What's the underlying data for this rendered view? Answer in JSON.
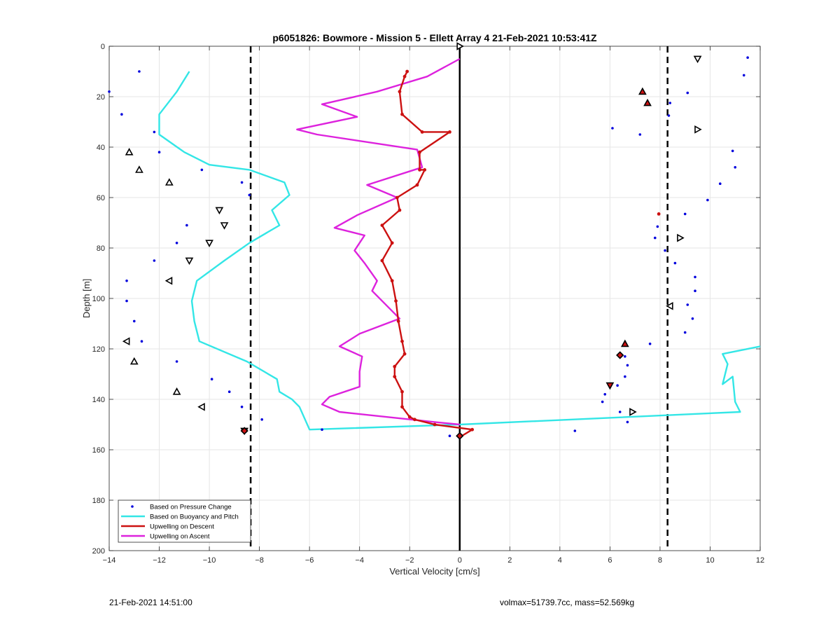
{
  "footer": {
    "left": "21-Feb-2021 14:51:00",
    "right": "volmax=51739.7cc, mass=52.569kg"
  },
  "colors": {
    "pressure": "#0000dd",
    "buoyancy": "#33e6e6",
    "descent": "#cc1111",
    "ascent": "#dd22dd"
  },
  "chart_data": {
    "type": "line",
    "title": "p6051826: Bowmore - Mission 5 - Ellett Array 4 21-Feb-2021 10:53:41Z",
    "xlabel": "Vertical Velocity [cm/s]",
    "ylabel": "Depth [m]",
    "xlim": [
      -14,
      12
    ],
    "ylim": [
      0,
      200
    ],
    "y_reversed": true,
    "grid": true,
    "xticks": [
      -14,
      -12,
      -10,
      -8,
      -6,
      -4,
      -2,
      0,
      2,
      4,
      6,
      8,
      10,
      12
    ],
    "yticks": [
      0,
      20,
      40,
      60,
      80,
      100,
      120,
      140,
      160,
      180,
      200
    ],
    "legend_position": "bottom-left",
    "vertical_lines": [
      {
        "x": -8.35,
        "style": "dashed"
      },
      {
        "x": 0,
        "style": "solid"
      },
      {
        "x": 8.3,
        "style": "dashed"
      }
    ],
    "series": [
      {
        "name": "Based on Pressure Change",
        "kind": "points",
        "x": [
          -12.8,
          -14.0,
          -13.5,
          -12.2,
          -12.0,
          -10.3,
          -8.7,
          -8.4,
          -9.6,
          -10.9,
          -11.3,
          -12.2,
          -13.3,
          -13.3,
          -13.0,
          -12.7,
          -11.3,
          -9.9,
          -9.2,
          -8.7,
          -7.9,
          -5.5,
          -0.4,
          11.5,
          11.35,
          9.1,
          8.4,
          8.35,
          6.1,
          7.2,
          10.9,
          11.0,
          10.4,
          9.9,
          9.0,
          7.9,
          7.8,
          8.2,
          8.6,
          9.4,
          9.4,
          9.1,
          9.3,
          9.0,
          7.6,
          6.6,
          6.7,
          6.6,
          6.3,
          5.8,
          5.7,
          6.4,
          6.7,
          4.6
        ],
        "y": [
          10,
          18,
          27,
          34,
          42,
          49,
          54,
          59,
          65,
          71,
          78,
          85,
          93,
          101,
          109,
          117,
          125,
          132,
          137,
          143,
          148,
          152,
          154.5,
          4.5,
          11.5,
          18.5,
          22.5,
          27.5,
          32.5,
          35,
          41.5,
          48,
          54.5,
          61,
          66.5,
          71.5,
          76,
          81,
          86,
          91.5,
          97,
          102.5,
          108,
          113.5,
          118,
          123,
          126.5,
          131,
          134.5,
          138,
          141,
          145,
          149,
          152.5
        ]
      },
      {
        "name": "Based on Buoyancy and Pitch",
        "kind": "line",
        "x": [
          -10.8,
          -11.3,
          -12.0,
          -12.0,
          -12.0,
          -11.0,
          -10.0,
          -8.4,
          -7.0,
          -6.8,
          -7.5,
          -7.2,
          -8.4,
          -9.4,
          -10.5,
          -10.7,
          -10.6,
          -10.4,
          -8.5,
          -7.3,
          -7.2,
          -6.7,
          -6.4,
          -6.0,
          0.0,
          11.2,
          11.0,
          10.9,
          10.5,
          10.7,
          10.5,
          10.5,
          12.0
        ],
        "y": [
          10,
          18,
          27,
          34,
          35,
          42,
          47,
          49,
          54,
          59,
          65,
          71,
          78,
          85,
          93,
          101,
          109,
          117,
          125,
          132,
          137,
          140,
          143,
          152,
          150,
          145,
          141,
          131,
          134,
          126,
          122,
          122,
          119
        ]
      },
      {
        "name": "Upwelling on Descent",
        "kind": "line",
        "x": [
          -2.1,
          -2.2,
          -2.4,
          -2.3,
          -1.5,
          -0.4,
          -1.6,
          -1.6,
          -1.4,
          -1.7,
          -2.5,
          -2.4,
          -3.1,
          -2.7,
          -3.1,
          -2.7,
          -2.55,
          -2.45,
          -2.3,
          -2.2,
          -2.6,
          -2.6,
          -2.3,
          -2.3,
          -2.0,
          -1.8,
          -1.0,
          0.5,
          0.0,
          0.0
        ],
        "y": [
          10,
          12,
          18,
          27,
          34,
          34,
          42,
          49,
          49,
          55,
          60,
          65,
          71,
          78,
          85,
          93,
          101,
          109,
          117,
          122,
          127,
          131,
          137,
          143,
          147,
          148,
          150,
          152,
          155,
          155
        ]
      },
      {
        "name": "Upwelling on Ascent",
        "kind": "line",
        "x": [
          0.0,
          -1.3,
          -3.3,
          -5.5,
          -4.1,
          -6.5,
          -5.7,
          -1.7,
          -1.5,
          -3.7,
          -2.5,
          -4.1,
          -5.0,
          -3.8,
          -4.2,
          -3.8,
          -3.3,
          -3.5,
          -2.4,
          -4.0,
          -4.8,
          -3.9,
          -4.0,
          -4.0,
          -5.2,
          -5.5,
          -4.8,
          -1.0,
          0.0
        ],
        "y": [
          5,
          12,
          18,
          23,
          28,
          33,
          35,
          41,
          48,
          55,
          60,
          67,
          72,
          75,
          81,
          86,
          93,
          97,
          108,
          114,
          119,
          123,
          129,
          135,
          139,
          142,
          145,
          149,
          150
        ]
      },
      {
        "kind": "points-filled",
        "x": [
          -2.1,
          -2.2,
          -2.4,
          -2.3,
          -1.5,
          -0.4,
          -1.6,
          -1.6,
          -1.4,
          -1.7,
          -2.5,
          -2.4,
          -3.1,
          -2.7,
          -3.1,
          -2.7,
          -2.55,
          -2.45,
          -2.3,
          -2.2,
          -2.6,
          -2.6,
          -2.3,
          -2.3,
          -2.0,
          -1.8,
          -1.0,
          0.5,
          7.95
        ],
        "y": [
          10,
          12,
          18,
          27,
          34,
          34,
          42,
          49,
          49,
          55,
          60,
          65,
          71,
          78,
          85,
          93,
          101,
          109,
          117,
          122,
          127,
          131,
          137,
          143,
          147,
          148,
          150,
          152,
          66.5
        ]
      },
      {
        "kind": "markers-up",
        "x": [
          -13.2,
          -12.8,
          -11.6,
          -13.0,
          -11.3,
          7.3,
          7.5,
          6.6
        ],
        "y": [
          42,
          49,
          54,
          125,
          137,
          18,
          22.5,
          118
        ]
      },
      {
        "kind": "markers-down",
        "x": [
          9.5,
          -9.6,
          -9.4,
          -10.0,
          -10.8,
          6.0,
          -8.6
        ],
        "y": [
          5,
          65,
          71,
          78,
          85,
          134.5,
          152.5
        ]
      },
      {
        "kind": "markers-left",
        "x": [
          -11.6,
          -13.3,
          8.4,
          -10.3
        ],
        "y": [
          93,
          117,
          103,
          143
        ]
      },
      {
        "kind": "markers-right",
        "x": [
          0.0,
          9.5,
          8.8,
          6.9
        ],
        "y": [
          0,
          33,
          76,
          145
        ]
      },
      {
        "kind": "markers-filled",
        "x": [
          -8.6,
          6.4,
          0.0
        ],
        "y": [
          152.5,
          122.5,
          154.5
        ]
      }
    ]
  }
}
